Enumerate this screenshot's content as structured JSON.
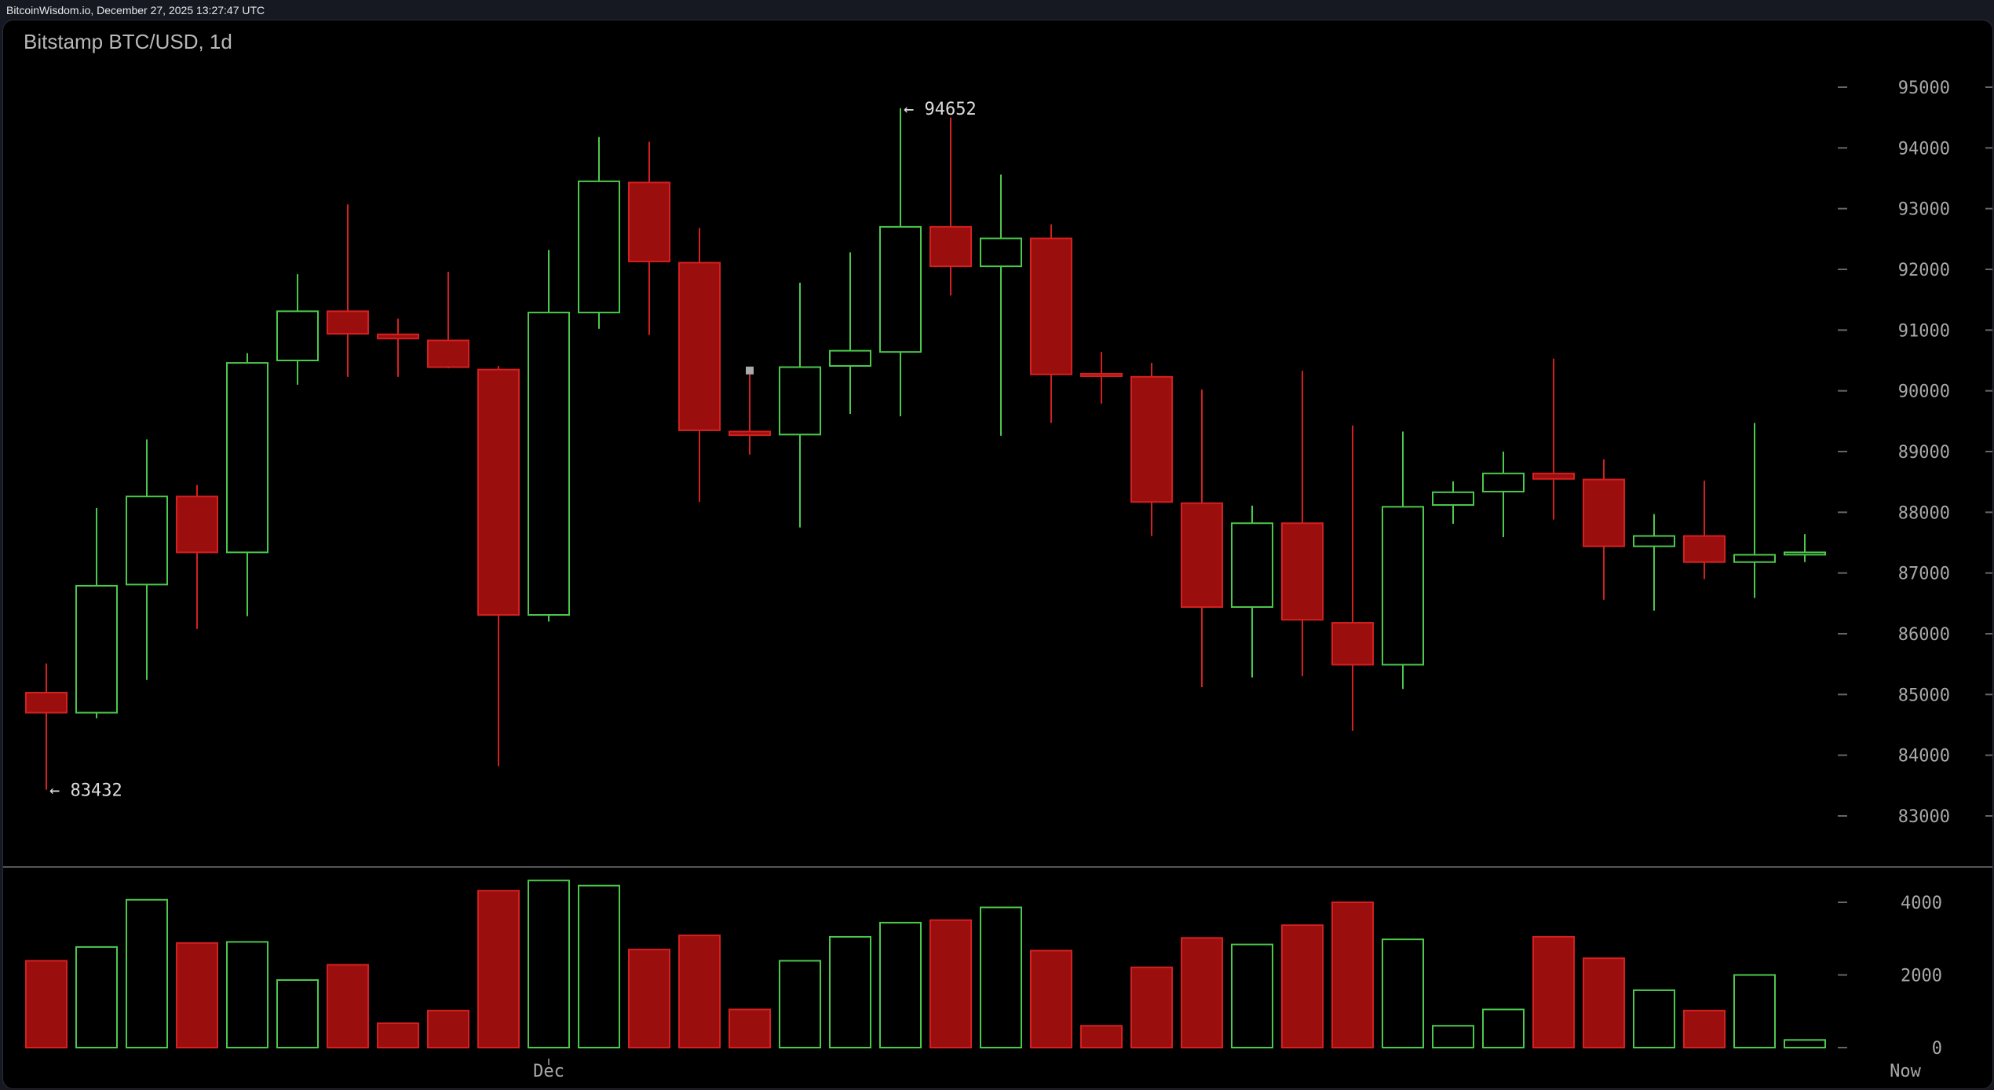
{
  "header": {
    "source_timestamp": "BitcoinWisdom.io, December 27, 2025 13:27:47 UTC"
  },
  "chart_data": {
    "type": "candlestick",
    "title": "Bitstamp BTC/USD, 1d",
    "colors": {
      "up": "#4cc94c",
      "down_fill": "#9b0e0e",
      "down_stroke": "#d42020",
      "background": "#000000"
    },
    "price_axis": {
      "ylim": [
        82500,
        95500
      ],
      "ticks": [
        83000,
        84000,
        85000,
        86000,
        87000,
        88000,
        89000,
        90000,
        91000,
        92000,
        93000,
        94000,
        95000
      ]
    },
    "volume_axis": {
      "ylim": [
        0,
        4500
      ],
      "ticks": [
        0,
        2000,
        4000
      ]
    },
    "x_labels": [
      {
        "label": "Dec",
        "index": 10
      },
      {
        "label": "Now",
        "index": 37
      }
    ],
    "annotations": [
      {
        "text": "← 94652",
        "index": 17,
        "price": 94652
      },
      {
        "text": "← 83432",
        "index": 0,
        "price": 83432
      }
    ],
    "candles": [
      {
        "o": 85030,
        "h": 85510,
        "l": 83432,
        "c": 84700,
        "v": 2390
      },
      {
        "o": 84700,
        "h": 88070,
        "l": 84610,
        "c": 86790,
        "v": 2770
      },
      {
        "o": 86810,
        "h": 89200,
        "l": 85240,
        "c": 88260,
        "v": 4070
      },
      {
        "o": 88260,
        "h": 88450,
        "l": 86080,
        "c": 87340,
        "v": 2880
      },
      {
        "o": 87340,
        "h": 90620,
        "l": 86290,
        "c": 90460,
        "v": 2910
      },
      {
        "o": 90500,
        "h": 91920,
        "l": 90100,
        "c": 91310,
        "v": 1860
      },
      {
        "o": 91310,
        "h": 93070,
        "l": 90230,
        "c": 90940,
        "v": 2280
      },
      {
        "o": 90930,
        "h": 91190,
        "l": 90230,
        "c": 90860,
        "v": 670
      },
      {
        "o": 90830,
        "h": 91960,
        "l": 90370,
        "c": 90390,
        "v": 1020
      },
      {
        "o": 90350,
        "h": 90410,
        "l": 83820,
        "c": 86310,
        "v": 4320
      },
      {
        "o": 86310,
        "h": 92320,
        "l": 86200,
        "c": 91290,
        "v": 4600
      },
      {
        "o": 91290,
        "h": 94180,
        "l": 91020,
        "c": 93450,
        "v": 4460
      },
      {
        "o": 93430,
        "h": 94100,
        "l": 90920,
        "c": 92130,
        "v": 2700
      },
      {
        "o": 92110,
        "h": 92680,
        "l": 88170,
        "c": 89350,
        "v": 3090
      },
      {
        "o": 89330,
        "h": 90270,
        "l": 88950,
        "c": 89270,
        "v": 1050
      },
      {
        "o": 89280,
        "h": 91780,
        "l": 87750,
        "c": 90390,
        "v": 2390
      },
      {
        "o": 90410,
        "h": 92280,
        "l": 89620,
        "c": 90660,
        "v": 3050
      },
      {
        "o": 90640,
        "h": 94652,
        "l": 89580,
        "c": 92700,
        "v": 3440
      },
      {
        "o": 92700,
        "h": 94500,
        "l": 91570,
        "c": 92050,
        "v": 3510
      },
      {
        "o": 92050,
        "h": 93560,
        "l": 89260,
        "c": 92510,
        "v": 3860
      },
      {
        "o": 92510,
        "h": 92740,
        "l": 89470,
        "c": 90270,
        "v": 2670
      },
      {
        "o": 90280,
        "h": 90640,
        "l": 89790,
        "c": 90260,
        "v": 600
      },
      {
        "o": 90230,
        "h": 90460,
        "l": 87610,
        "c": 88170,
        "v": 2210
      },
      {
        "o": 88150,
        "h": 90020,
        "l": 85120,
        "c": 86440,
        "v": 3020
      },
      {
        "o": 86440,
        "h": 88110,
        "l": 85280,
        "c": 87820,
        "v": 2840
      },
      {
        "o": 87820,
        "h": 90330,
        "l": 85300,
        "c": 86230,
        "v": 3370
      },
      {
        "o": 86180,
        "h": 89430,
        "l": 84400,
        "c": 85490,
        "v": 4000
      },
      {
        "o": 85490,
        "h": 89330,
        "l": 85090,
        "c": 88090,
        "v": 2980
      },
      {
        "o": 88120,
        "h": 88510,
        "l": 87810,
        "c": 88330,
        "v": 600
      },
      {
        "o": 88340,
        "h": 89000,
        "l": 87590,
        "c": 88640,
        "v": 1050
      },
      {
        "o": 88640,
        "h": 90530,
        "l": 87880,
        "c": 88550,
        "v": 3050
      },
      {
        "o": 88540,
        "h": 88870,
        "l": 86560,
        "c": 87440,
        "v": 2460
      },
      {
        "o": 87440,
        "h": 87970,
        "l": 86380,
        "c": 87610,
        "v": 1580
      },
      {
        "o": 87610,
        "h": 88520,
        "l": 86900,
        "c": 87180,
        "v": 1020
      },
      {
        "o": 87180,
        "h": 89470,
        "l": 86590,
        "c": 87300,
        "v": 2000
      },
      {
        "o": 87310,
        "h": 87640,
        "l": 87180,
        "c": 87340,
        "v": 210
      }
    ]
  }
}
